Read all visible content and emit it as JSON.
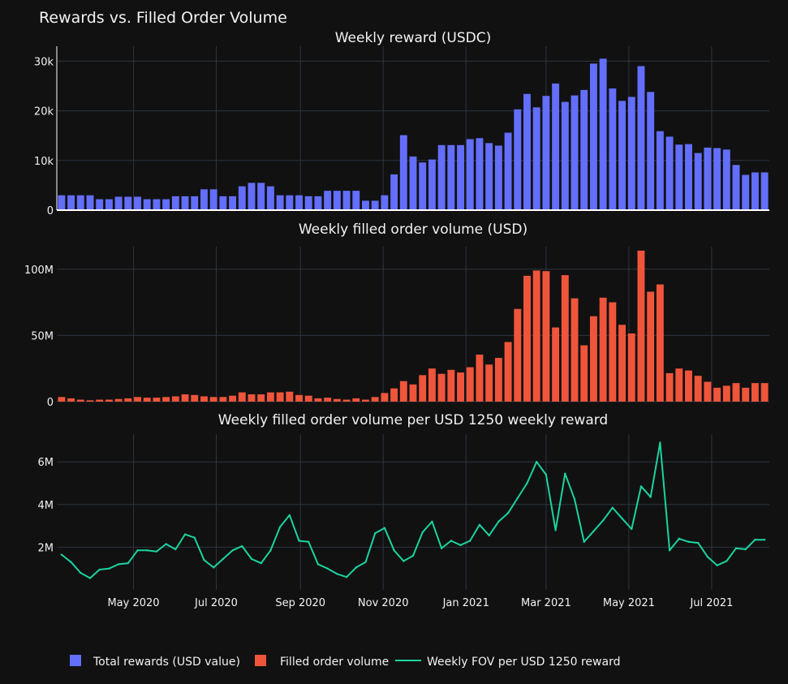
{
  "colors": {
    "rewards": "#636efa",
    "volume": "#ef553b",
    "ratio": "#1bd3a0",
    "background": "#111111",
    "grid": "#2e3440"
  },
  "chart_data": {
    "type": "bar",
    "title": "Rewards vs. Filled Order Volume",
    "x": [
      "2020-03-09",
      "2020-03-16",
      "2020-03-23",
      "2020-03-30",
      "2020-04-06",
      "2020-04-13",
      "2020-04-20",
      "2020-04-27",
      "2020-05-04",
      "2020-05-11",
      "2020-05-18",
      "2020-05-25",
      "2020-06-01",
      "2020-06-08",
      "2020-06-15",
      "2020-06-22",
      "2020-06-29",
      "2020-07-06",
      "2020-07-13",
      "2020-07-20",
      "2020-07-27",
      "2020-08-03",
      "2020-08-10",
      "2020-08-17",
      "2020-08-24",
      "2020-08-31",
      "2020-09-07",
      "2020-09-14",
      "2020-09-21",
      "2020-09-28",
      "2020-10-05",
      "2020-10-12",
      "2020-10-19",
      "2020-10-26",
      "2020-11-02",
      "2020-11-09",
      "2020-11-16",
      "2020-11-23",
      "2020-11-30",
      "2020-12-07",
      "2020-12-14",
      "2020-12-21",
      "2020-12-28",
      "2021-01-04",
      "2021-01-11",
      "2021-01-18",
      "2021-01-25",
      "2021-02-01",
      "2021-02-08",
      "2021-02-15",
      "2021-02-22",
      "2021-03-01",
      "2021-03-08",
      "2021-03-15",
      "2021-03-22",
      "2021-03-29",
      "2021-04-05",
      "2021-04-12",
      "2021-04-19",
      "2021-04-26",
      "2021-05-03",
      "2021-05-10",
      "2021-05-17",
      "2021-05-24",
      "2021-05-31",
      "2021-06-07",
      "2021-06-14",
      "2021-06-21",
      "2021-06-28",
      "2021-07-05",
      "2021-07-12",
      "2021-07-19",
      "2021-07-26",
      "2021-08-02",
      "2021-08-09"
    ],
    "x_ticks": [
      {
        "label": "May 2020",
        "x": "2020-05-01"
      },
      {
        "label": "Jul 2020",
        "x": "2020-07-01"
      },
      {
        "label": "Sep 2020",
        "x": "2020-09-01"
      },
      {
        "label": "Nov 2020",
        "x": "2020-11-01"
      },
      {
        "label": "Jan 2021",
        "x": "2021-01-01"
      },
      {
        "label": "Mar 2021",
        "x": "2021-03-01"
      },
      {
        "label": "May 2021",
        "x": "2021-05-01"
      },
      {
        "label": "Jul 2021",
        "x": "2021-07-01"
      }
    ],
    "subplots": [
      {
        "title": "Weekly reward (USDC)",
        "type": "bar",
        "series_name": "Total rewards (USD value)",
        "ylim": [
          0,
          33000
        ],
        "yticks": [
          {
            "v": 0,
            "label": "0"
          },
          {
            "v": 10000,
            "label": "10k"
          },
          {
            "v": 20000,
            "label": "20k"
          },
          {
            "v": 30000,
            "label": "30k"
          }
        ],
        "values": [
          3000,
          3000,
          3000,
          3000,
          2200,
          2200,
          2700,
          2700,
          2700,
          2200,
          2200,
          2200,
          2800,
          2800,
          2800,
          4200,
          4200,
          2800,
          2800,
          4800,
          5500,
          5500,
          4800,
          3000,
          3000,
          3000,
          2800,
          2800,
          3900,
          3900,
          3900,
          3900,
          1900,
          1900,
          3000,
          7200,
          15100,
          10800,
          9600,
          10200,
          13100,
          13100,
          13100,
          14300,
          14500,
          13500,
          13000,
          15600,
          20300,
          23400,
          20700,
          23000,
          25500,
          21800,
          23100,
          24200,
          29500,
          30500,
          24500,
          22000,
          22800,
          29000,
          23800,
          15900,
          14800,
          13200,
          13300,
          11500,
          12600,
          12500,
          12200,
          9100,
          7100,
          7600,
          7600
        ]
      },
      {
        "title": "Weekly filled order volume (USD)",
        "type": "bar",
        "series_name": "Filled order volume",
        "ylim": [
          0,
          117000000
        ],
        "yticks": [
          {
            "v": 0,
            "label": "0"
          },
          {
            "v": 50000000,
            "label": "50M"
          },
          {
            "v": 100000000,
            "label": "100M"
          }
        ],
        "values": [
          3500000,
          2500000,
          1500000,
          1000000,
          1500000,
          1500000,
          2000000,
          2500000,
          3500000,
          3000000,
          3000000,
          3500000,
          4000000,
          5500000,
          5000000,
          4000000,
          3500000,
          3500000,
          4500000,
          7000000,
          5500000,
          5500000,
          7000000,
          7000000,
          7500000,
          5000000,
          4500000,
          2500000,
          3000000,
          2000000,
          1500000,
          2500000,
          1500000,
          3500000,
          6500000,
          10000000,
          15500000,
          13000000,
          20000000,
          25000000,
          21000000,
          24000000,
          22000000,
          26000000,
          35500000,
          28000000,
          33000000,
          45000000,
          70000000,
          95000000,
          99000000,
          98500000,
          56000000,
          95500000,
          78000000,
          42500000,
          64500000,
          78500000,
          75000000,
          58000000,
          51500000,
          114000000,
          83000000,
          88500000,
          21500000,
          25000000,
          23500000,
          19500000,
          15000000,
          10500000,
          12000000,
          14000000,
          10500000,
          14000000,
          14000000
        ]
      },
      {
        "title": "Weekly filled order volume per USD 1250 weekly reward",
        "type": "line",
        "series_name": "Weekly FOV per USD 1250 reward",
        "ylim": [
          0,
          7300000
        ],
        "yticks": [
          {
            "v": 2000000,
            "label": "2M"
          },
          {
            "v": 4000000,
            "label": "4M"
          },
          {
            "v": 6000000,
            "label": "6M"
          }
        ],
        "values": [
          1650000,
          1300000,
          800000,
          550000,
          950000,
          1000000,
          1200000,
          1250000,
          1850000,
          1850000,
          1800000,
          2150000,
          1900000,
          2600000,
          2450000,
          1400000,
          1050000,
          1450000,
          1850000,
          2050000,
          1450000,
          1250000,
          1850000,
          2950000,
          3500000,
          2300000,
          2250000,
          1200000,
          1000000,
          750000,
          600000,
          1050000,
          1300000,
          2650000,
          2900000,
          1850000,
          1350000,
          1600000,
          2700000,
          3200000,
          1950000,
          2300000,
          2100000,
          2300000,
          3050000,
          2550000,
          3200000,
          3600000,
          4300000,
          5000000,
          6000000,
          5400000,
          2800000,
          5450000,
          4250000,
          2250000,
          2750000,
          3250000,
          3850000,
          3350000,
          2850000,
          4850000,
          4350000,
          6900000,
          1850000,
          2400000,
          2250000,
          2200000,
          1550000,
          1150000,
          1350000,
          1950000,
          1900000,
          2350000,
          2350000
        ]
      }
    ],
    "legend": {
      "placement": "bottom-left",
      "items": [
        "Total rewards (USD value)",
        "Filled order volume",
        "Weekly FOV per USD 1250 reward"
      ]
    }
  }
}
